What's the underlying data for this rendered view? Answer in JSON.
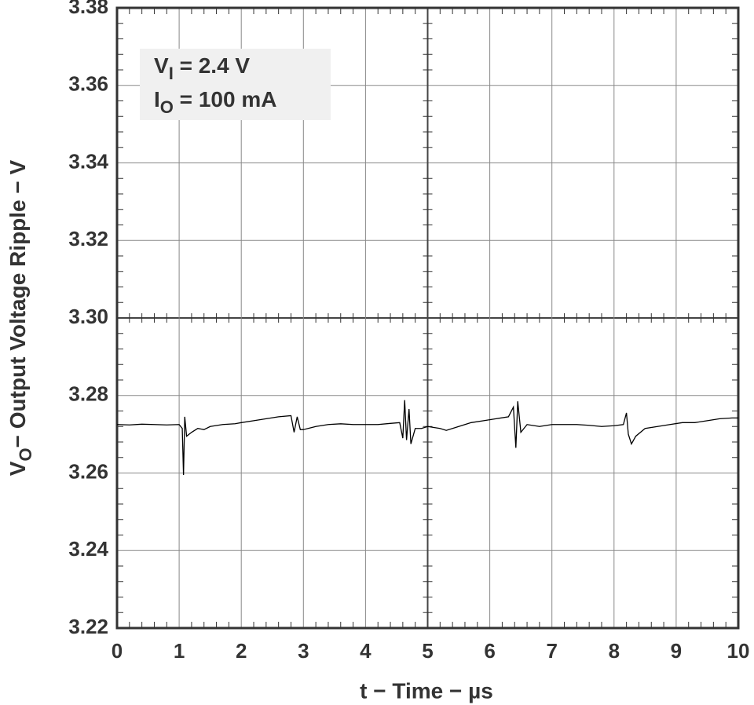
{
  "chart_data": {
    "type": "line",
    "ylabel": [
      "V",
      "O",
      "− Output Voltage Ripple − V"
    ],
    "xlabel": "t − Time − µs",
    "annotations": [
      [
        "V",
        "I",
        " = 2.4 V"
      ],
      [
        "I",
        "O",
        " = 100 mA"
      ]
    ],
    "x": [
      0,
      0.2,
      0.4,
      0.6,
      0.8,
      1.0,
      1.05,
      1.07,
      1.09,
      1.12,
      1.2,
      1.3,
      1.4,
      1.5,
      1.7,
      1.9,
      2.0,
      2.2,
      2.4,
      2.6,
      2.8,
      2.85,
      2.9,
      2.95,
      3.0,
      3.2,
      3.4,
      3.6,
      3.8,
      4.0,
      4.2,
      4.4,
      4.55,
      4.6,
      4.63,
      4.66,
      4.7,
      4.73,
      4.8,
      4.9,
      5.0,
      5.2,
      5.3,
      5.5,
      5.7,
      5.9,
      6.1,
      6.3,
      6.38,
      6.42,
      6.45,
      6.5,
      6.6,
      6.8,
      7.0,
      7.2,
      7.4,
      7.6,
      7.8,
      8.0,
      8.15,
      8.2,
      8.23,
      8.28,
      8.35,
      8.5,
      8.7,
      8.9,
      9.1,
      9.3,
      9.5,
      9.7,
      9.9,
      10
    ],
    "series": [
      {
        "color": "#000000",
        "values": [
          3.2725,
          3.2724,
          3.2726,
          3.2725,
          3.2724,
          3.2725,
          3.2715,
          3.2595,
          3.2745,
          3.2695,
          3.2705,
          3.2715,
          3.2712,
          3.272,
          3.2725,
          3.2727,
          3.273,
          3.2735,
          3.274,
          3.2745,
          3.2748,
          3.2705,
          3.2745,
          3.2712,
          3.2712,
          3.272,
          3.2725,
          3.2727,
          3.2725,
          3.2725,
          3.2725,
          3.2728,
          3.273,
          3.269,
          3.2788,
          3.2685,
          3.2765,
          3.2675,
          3.2715,
          3.2715,
          3.272,
          3.2715,
          3.271,
          3.272,
          3.273,
          3.2735,
          3.274,
          3.2745,
          3.277,
          3.2665,
          3.2785,
          3.2705,
          3.2725,
          3.272,
          3.2725,
          3.2725,
          3.2725,
          3.2723,
          3.272,
          3.2722,
          3.2725,
          3.2755,
          3.27,
          3.2675,
          3.2695,
          3.2715,
          3.272,
          3.2725,
          3.273,
          3.273,
          3.2735,
          3.274,
          3.2742,
          3.2742
        ]
      }
    ],
    "xlim": [
      0,
      10
    ],
    "xticks": [
      0,
      1,
      2,
      3,
      4,
      5,
      6,
      7,
      8,
      9,
      10
    ],
    "ylim": [
      3.22,
      3.38
    ],
    "yticks": [
      3.22,
      3.24,
      3.26,
      3.28,
      {
        "value": 3.3,
        "label": "3.30"
      },
      3.32,
      3.34,
      3.36,
      3.38
    ],
    "grid": true
  }
}
